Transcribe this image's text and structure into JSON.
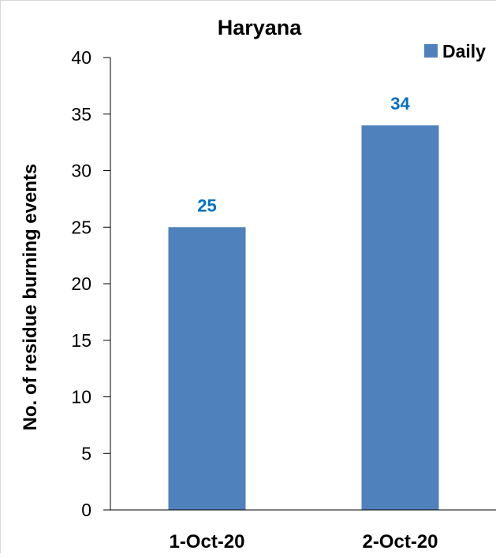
{
  "chart_data": {
    "type": "bar",
    "title": "Haryana",
    "ylabel": "No. of residue burning events",
    "xlabel": "",
    "categories": [
      "1-Oct-20",
      "2-Oct-20"
    ],
    "series": [
      {
        "name": "Daily",
        "values": [
          25,
          34
        ],
        "color": "#4f81bd"
      }
    ],
    "data_labels": [
      "25",
      "34"
    ],
    "data_label_color": "#0070c0",
    "ylim": [
      0,
      40
    ],
    "yticks": [
      0,
      5,
      10,
      15,
      20,
      25,
      30,
      35,
      40
    ],
    "ytick_labels": [
      "0",
      "5",
      "10",
      "15",
      "20",
      "25",
      "30",
      "35",
      "40"
    ],
    "grid": false,
    "legend": {
      "placement": "top-right",
      "entries": [
        "Daily"
      ]
    }
  }
}
